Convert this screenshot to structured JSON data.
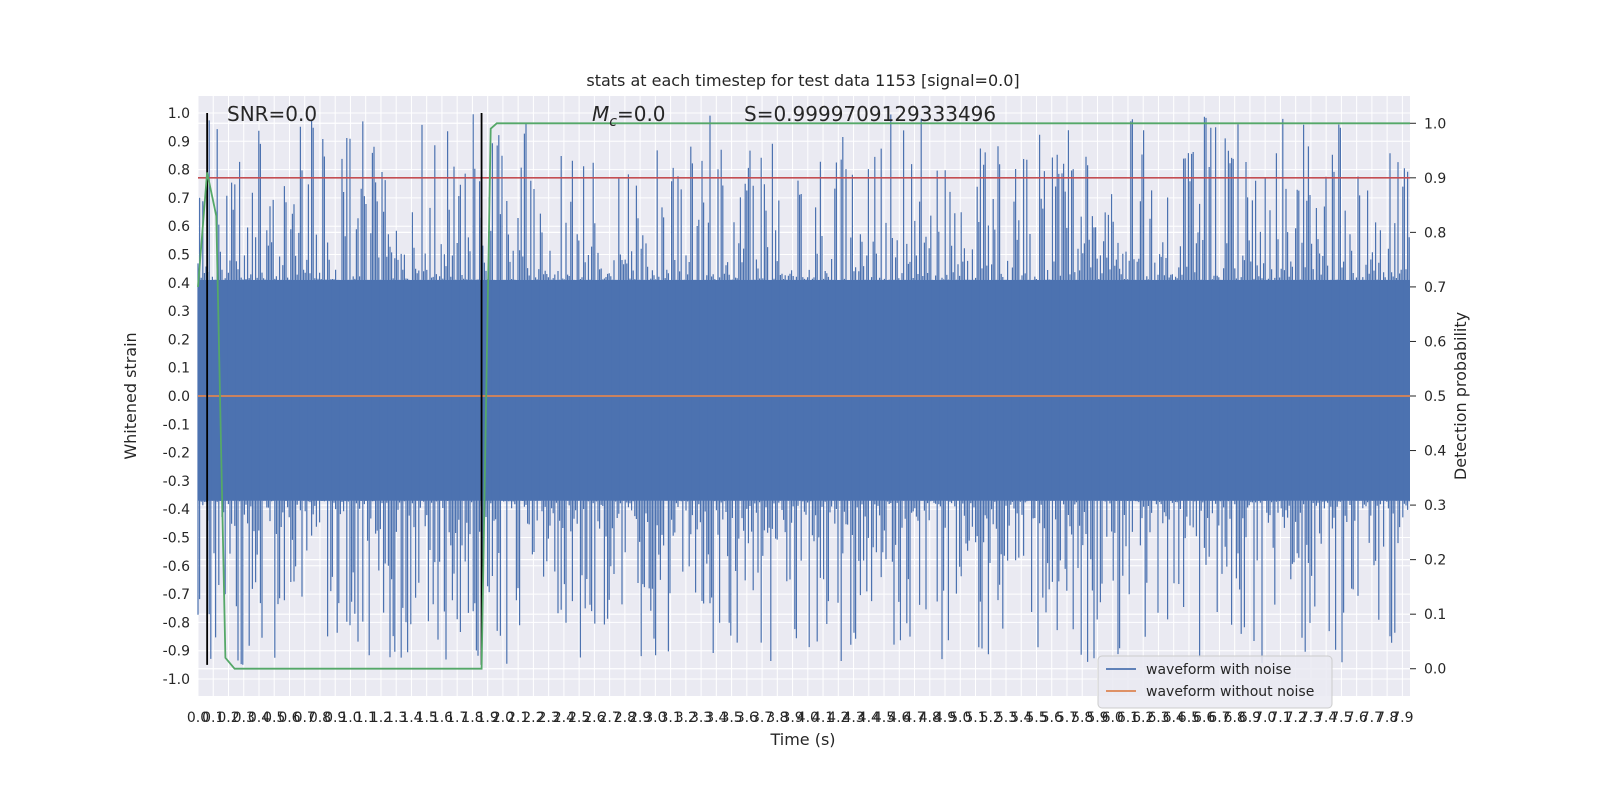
{
  "chart_data": {
    "type": "line",
    "title": "stats at each timestep for test data 1153 [signal=0.0]",
    "xlabel": "Time (s)",
    "ylabel": "Whitened strain",
    "y2label": "Detection probability",
    "xlim": [
      0.0,
      7.95
    ],
    "ylim": [
      -1.06,
      1.06
    ],
    "y2lim": [
      -0.05,
      1.05
    ],
    "grid": true,
    "x_ticks": [
      "0.0",
      "0.1",
      "0.2",
      "0.3",
      "0.4",
      "0.5",
      "0.6",
      "0.7",
      "0.8",
      "0.9",
      "1.0",
      "1.1",
      "1.2",
      "1.3",
      "1.4",
      "1.5",
      "1.6",
      "1.7",
      "1.8",
      "1.9",
      "2.0",
      "2.1",
      "2.2",
      "2.3",
      "2.4",
      "2.5",
      "2.6",
      "2.7",
      "2.8",
      "2.9",
      "3.0",
      "3.1",
      "3.2",
      "3.3",
      "3.4",
      "3.5",
      "3.6",
      "3.7",
      "3.8",
      "3.9",
      "4.0",
      "4.1",
      "4.2",
      "4.3",
      "4.4",
      "4.5",
      "4.6",
      "4.7",
      "4.8",
      "4.9",
      "5.0",
      "5.1",
      "5.2",
      "5.3",
      "5.4",
      "5.5",
      "5.6",
      "5.7",
      "5.8",
      "5.9",
      "6.0",
      "6.1",
      "6.2",
      "6.3",
      "6.4",
      "6.5",
      "6.6",
      "6.7",
      "6.8",
      "6.9",
      "7.0",
      "7.1",
      "7.2",
      "7.3",
      "7.4",
      "7.5",
      "7.6",
      "7.7",
      "7.8",
      "7.9"
    ],
    "y_ticks": [
      "1.0",
      "0.9",
      "0.8",
      "0.7",
      "0.6",
      "0.5",
      "0.4",
      "0.3",
      "0.2",
      "0.1",
      "0.0",
      "-0.1",
      "-0.2",
      "-0.3",
      "-0.4",
      "-0.5",
      "-0.6",
      "-0.7",
      "-0.8",
      "-0.9",
      "-1.0"
    ],
    "y2_ticks": [
      "1.0",
      "0.9",
      "0.8",
      "0.7",
      "0.6",
      "0.5",
      "0.4",
      "0.3",
      "0.2",
      "0.1",
      "0.0"
    ],
    "annotations": {
      "snr": "SNR=0.0",
      "mc_symbol": "M",
      "mc_sub": "c",
      "mc_value": "=0.0",
      "s": "S=0.9999709129333496"
    },
    "series": [
      {
        "name": "waveform with noise",
        "color": "#4c72b0",
        "kind": "noise",
        "band": [
          -0.37,
          0.41
        ],
        "peak_max": 1.0,
        "peak_min": -0.95
      },
      {
        "name": "waveform without noise",
        "color": "#dd8452",
        "kind": "flat",
        "values": [
          0.0
        ]
      },
      {
        "color": "#55a868",
        "axis": "right",
        "x": [
          0.0,
          0.06,
          0.12,
          0.18,
          0.24,
          0.3,
          0.4,
          0.6,
          1.0,
          1.5,
          1.8,
          1.86,
          1.92,
          1.96,
          2.0,
          3.0,
          5.0,
          7.95
        ],
        "values": [
          0.7,
          0.91,
          0.83,
          0.02,
          0.0,
          0.0,
          0.0,
          0.0,
          0.0,
          0.0,
          0.0,
          0.0,
          0.99,
          1.0,
          1.0,
          1.0,
          1.0,
          1.0
        ]
      },
      {
        "color": "#c44e52",
        "kind": "threshold",
        "axis": "right",
        "values": [
          0.9
        ]
      }
    ],
    "vlines": [
      0.06,
      1.86
    ],
    "legend": {
      "placement": "lower-right",
      "entries": [
        "waveform with noise",
        "waveform without noise"
      ]
    }
  }
}
